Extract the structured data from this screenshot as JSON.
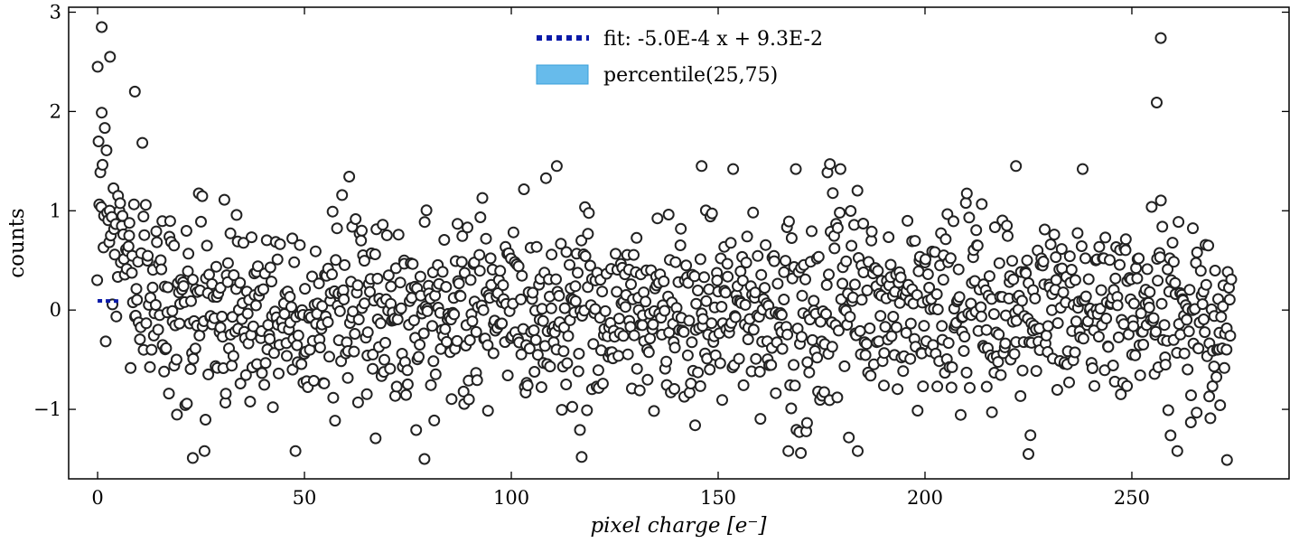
{
  "chart_data": {
    "type": "scatter",
    "title": "",
    "xlabel": "pixel charge [e⁻]",
    "ylabel": "counts",
    "xlim": [
      -7,
      288
    ],
    "ylim": [
      -1.7,
      3.05
    ],
    "xticks": [
      0,
      50,
      100,
      150,
      200,
      250
    ],
    "yticks": [
      -1,
      0,
      1,
      2,
      3
    ],
    "xtick_labels": [
      "0",
      "50",
      "100",
      "150",
      "200",
      "250"
    ],
    "ytick_labels": [
      "−1",
      "0",
      "1",
      "2",
      "3"
    ],
    "grid": false,
    "legend_position": "top-center",
    "series": [
      {
        "name": "fit: -5.0E-4 x + 9.3E-2",
        "kind": "line",
        "style": "dotted",
        "color": "#0a1aa8",
        "slope": -0.0005,
        "intercept": 0.093,
        "x": [
          0,
          5
        ]
      },
      {
        "name": "percentile(25,75)",
        "kind": "band",
        "color": "#56b4e9",
        "x": [],
        "lower": [],
        "upper": []
      },
      {
        "name": "",
        "kind": "scatter",
        "marker": "open-circle",
        "marker_edge_color": "#222222",
        "marker_face_color": "#ffffff",
        "x_range": [
          0,
          274
        ],
        "x_step": 0.2,
        "trend": "counts scatter around 0 with spread ~ ±1.2; values near x=0 rise up to ~2.85 and decay by x≈25",
        "notable_points": [
          {
            "x": 1,
            "y": 2.85
          },
          {
            "x": 0,
            "y": 2.45
          },
          {
            "x": 3,
            "y": 2.55
          },
          {
            "x": 9,
            "y": 2.2
          },
          {
            "x": 111,
            "y": 1.45
          },
          {
            "x": 146,
            "y": 1.45
          },
          {
            "x": 177,
            "y": 1.47
          },
          {
            "x": 222,
            "y": 1.45
          },
          {
            "x": 256,
            "y": 2.09
          },
          {
            "x": 257,
            "y": 2.74
          },
          {
            "x": 23,
            "y": -1.49
          },
          {
            "x": 79,
            "y": -1.5
          },
          {
            "x": 117,
            "y": -1.48
          },
          {
            "x": 170,
            "y": -1.44
          },
          {
            "x": 225,
            "y": -1.45
          },
          {
            "x": 273,
            "y": -1.51
          }
        ]
      }
    ]
  }
}
